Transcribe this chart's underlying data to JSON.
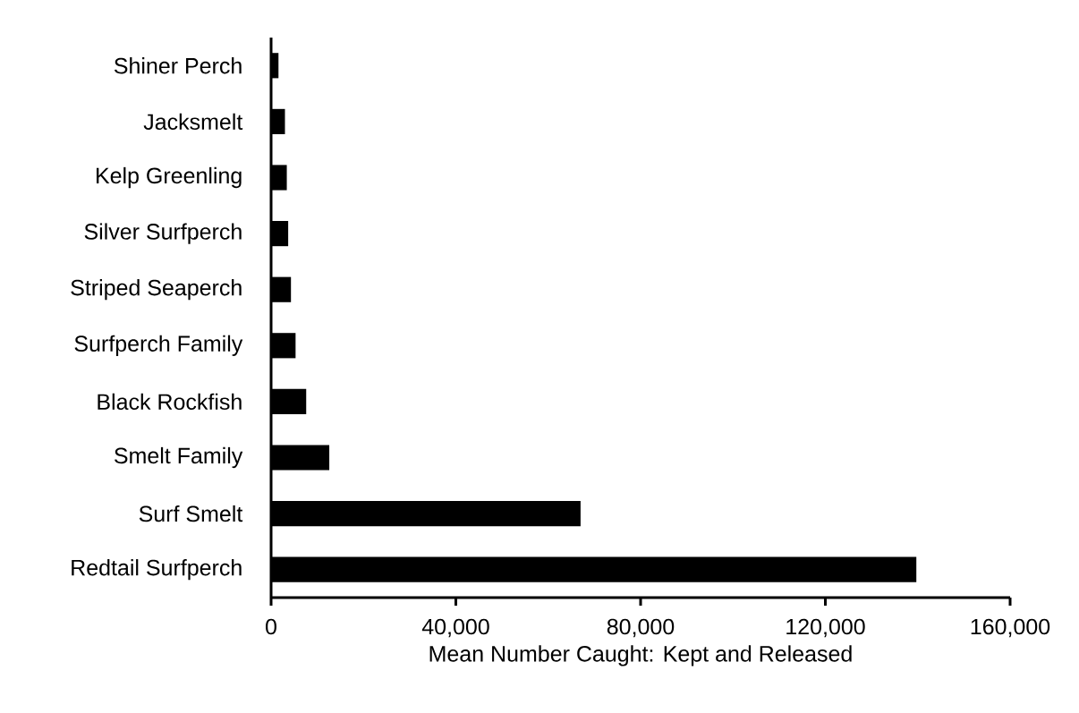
{
  "chart_data": {
    "type": "bar",
    "orientation": "horizontal",
    "categories": [
      "Shiner Perch",
      "Jacksmelt",
      "Kelp Greenling",
      "Silver Surfperch",
      "Striped Seaperch",
      "Surfperch Family",
      "Black Rockfish",
      "Smelt Family",
      "Surf Smelt",
      "Redtail Surfperch"
    ],
    "values": [
      1600,
      3000,
      3400,
      3700,
      4300,
      5300,
      7600,
      12600,
      67000,
      139700
    ],
    "color": "#000000",
    "xlabel": "Mean Number Caught: Kept and Released",
    "xlim": [
      0,
      160000
    ],
    "xticks": [
      0,
      {
        "value": 40000,
        "label": "40,000"
      },
      {
        "value": 80000,
        "label": "80,000"
      },
      {
        "value": 120000,
        "label": "120,000"
      },
      {
        "value": 160000,
        "label": "160,000"
      }
    ]
  }
}
